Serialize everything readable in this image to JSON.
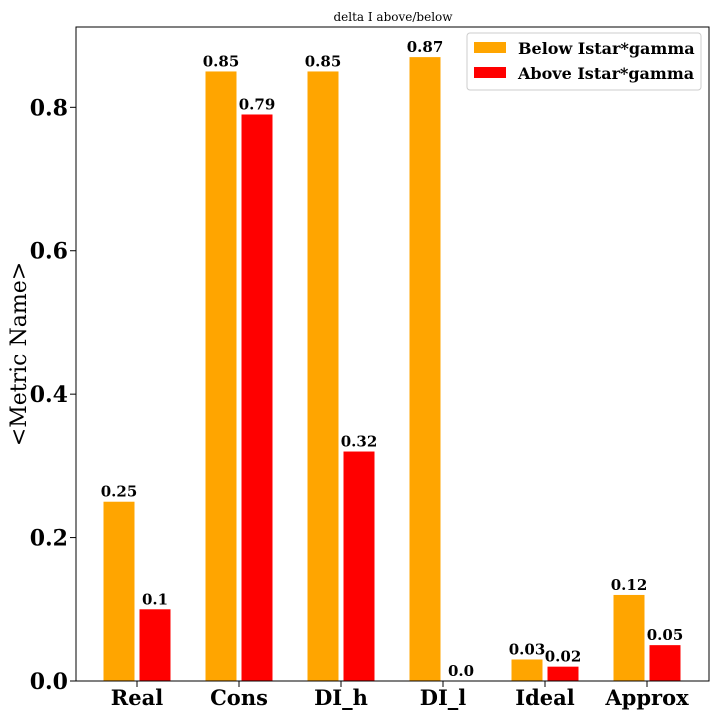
{
  "chart_data": {
    "type": "bar",
    "title": "delta I above/below",
    "xlabel": "",
    "ylabel": "<Metric Name>",
    "categories": [
      "Real",
      "Cons",
      "DI_h",
      "DI_l",
      "Ideal",
      "Approx"
    ],
    "series": [
      {
        "name": "Below Istar*gamma",
        "color": "#ffa500",
        "values": [
          0.25,
          0.85,
          0.85,
          0.87,
          0.03,
          0.12
        ],
        "labels": [
          "0.25",
          "0.85",
          "0.85",
          "0.87",
          "0.03",
          "0.12"
        ]
      },
      {
        "name": "Above Istar*gamma",
        "color": "#ff0000",
        "values": [
          0.1,
          0.79,
          0.32,
          0.0,
          0.02,
          0.05
        ],
        "labels": [
          "0.1",
          "0.79",
          "0.32",
          "0.0",
          "0.02",
          "0.05"
        ]
      }
    ],
    "ylim": [
      0,
      0.912
    ],
    "yticks": [
      0.0,
      0.2,
      0.4,
      0.6,
      0.8
    ],
    "ytick_labels": [
      "0.0",
      "0.2",
      "0.4",
      "0.6",
      "0.8"
    ],
    "grid": false,
    "legend_position": "top-right"
  }
}
